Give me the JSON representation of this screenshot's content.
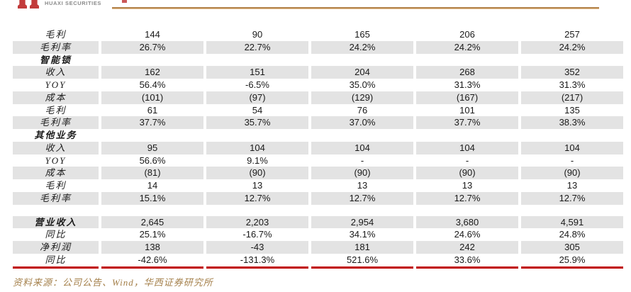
{
  "header": {
    "logo_text": "HUAXI SECURITIES",
    "logo_mark": "huaxi-twin-pillars-icon",
    "brand_red": "#c23b3b",
    "accent_line_color": "#b5854d"
  },
  "table": {
    "row_shade_color": "#e3e3e3",
    "bottom_border_color": "#c00000",
    "rows": [
      {
        "label": "毛利",
        "shaded": false,
        "bold": false,
        "values": [
          "144",
          "90",
          "165",
          "206",
          "257"
        ]
      },
      {
        "label": "毛利率",
        "shaded": true,
        "bold": false,
        "values": [
          "26.7%",
          "22.7%",
          "24.2%",
          "24.2%",
          "24.2%"
        ]
      },
      {
        "label": "智能锁",
        "shaded": false,
        "bold": true,
        "values": [
          "",
          "",
          "",
          "",
          ""
        ]
      },
      {
        "label": "收入",
        "shaded": true,
        "bold": false,
        "values": [
          "162",
          "151",
          "204",
          "268",
          "352"
        ]
      },
      {
        "label": "YOY",
        "shaded": false,
        "bold": false,
        "values": [
          "56.4%",
          "-6.5%",
          "35.0%",
          "31.3%",
          "31.3%"
        ]
      },
      {
        "label": "成本",
        "shaded": true,
        "bold": false,
        "values": [
          "(101)",
          "(97)",
          "(129)",
          "(167)",
          "(217)"
        ]
      },
      {
        "label": "毛利",
        "shaded": false,
        "bold": false,
        "values": [
          "61",
          "54",
          "76",
          "101",
          "135"
        ]
      },
      {
        "label": "毛利率",
        "shaded": true,
        "bold": false,
        "values": [
          "37.7%",
          "35.7%",
          "37.0%",
          "37.7%",
          "38.3%"
        ]
      },
      {
        "label": "其他业务",
        "shaded": false,
        "bold": true,
        "values": [
          "",
          "",
          "",
          "",
          ""
        ]
      },
      {
        "label": "收入",
        "shaded": true,
        "bold": false,
        "values": [
          "95",
          "104",
          "104",
          "104",
          "104"
        ]
      },
      {
        "label": "YOY",
        "shaded": false,
        "bold": false,
        "values": [
          "56.6%",
          "9.1%",
          "-",
          "-",
          "-"
        ]
      },
      {
        "label": "成本",
        "shaded": true,
        "bold": false,
        "values": [
          "(81)",
          "(90)",
          "(90)",
          "(90)",
          "(90)"
        ]
      },
      {
        "label": "毛利",
        "shaded": false,
        "bold": false,
        "values": [
          "14",
          "13",
          "13",
          "13",
          "13"
        ]
      },
      {
        "label": "毛利率",
        "shaded": true,
        "bold": false,
        "values": [
          "15.1%",
          "12.7%",
          "12.7%",
          "12.7%",
          "12.7%"
        ]
      },
      {
        "label": "",
        "spacer": true,
        "values": [
          "",
          "",
          "",
          "",
          ""
        ]
      },
      {
        "label": "营业收入",
        "shaded": true,
        "bold": true,
        "values": [
          "2,645",
          "2,203",
          "2,954",
          "3,680",
          "4,591"
        ]
      },
      {
        "label": "同比",
        "shaded": false,
        "bold": false,
        "values": [
          "25.1%",
          "-16.7%",
          "34.1%",
          "24.6%",
          "24.8%"
        ]
      },
      {
        "label": "净利润",
        "shaded": true,
        "bold": false,
        "values": [
          "138",
          "-43",
          "181",
          "242",
          "305"
        ]
      },
      {
        "label": "同比",
        "shaded": false,
        "bold": false,
        "values": [
          "-42.6%",
          "-131.3%",
          "521.6%",
          "33.6%",
          "25.9%"
        ]
      }
    ]
  },
  "footer": {
    "source_text": "资料来源：公司公告、Wind，华西证券研究所",
    "source_color": "#a5814c"
  }
}
